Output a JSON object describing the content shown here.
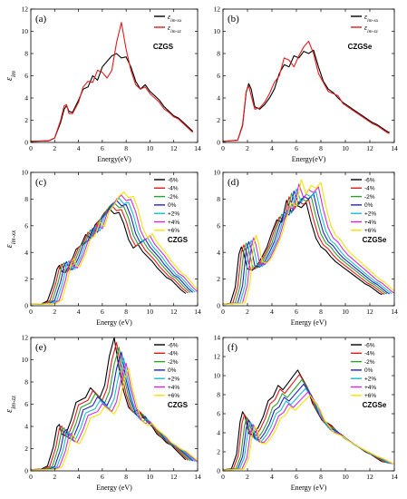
{
  "chart_data": [
    {
      "id": "a",
      "type": "line",
      "panel_label": "(a)",
      "annotation": "CZGS",
      "xlabel": "Energy(eV)",
      "ylabel_sym": "ε",
      "ylabel_sub": "im",
      "xlim": [
        0,
        14
      ],
      "ylim": [
        0,
        12
      ],
      "xticks": [
        0,
        2,
        4,
        6,
        8,
        10,
        12,
        14
      ],
      "yticks": [
        0,
        2,
        4,
        6,
        8,
        10,
        12
      ],
      "series": [
        {
          "name_sym": "ε",
          "name_sub": "im-xx",
          "color": "#000000",
          "x": [
            0,
            1.5,
            2.0,
            2.5,
            2.8,
            3.0,
            3.2,
            3.5,
            4.0,
            4.4,
            4.8,
            5.2,
            5.6,
            6.0,
            6.4,
            6.8,
            7.2,
            7.6,
            8.0,
            8.4,
            8.8,
            9.2,
            9.6,
            10.0,
            10.4,
            10.8,
            11.2,
            11.6,
            12.0,
            12.4,
            12.8,
            13.2,
            13.6
          ],
          "y": [
            0.1,
            0.15,
            0.4,
            1.8,
            3.0,
            3.3,
            2.8,
            2.7,
            3.8,
            4.8,
            5.0,
            6.0,
            5.6,
            6.8,
            7.3,
            7.8,
            8.0,
            7.6,
            7.7,
            6.8,
            5.5,
            4.8,
            5.2,
            4.6,
            4.2,
            3.8,
            3.2,
            2.8,
            2.4,
            2.2,
            1.8,
            1.4,
            1.0
          ]
        },
        {
          "name_sym": "ε",
          "name_sub": "im-zz",
          "color": "#e31a1c",
          "x": [
            0,
            1.5,
            2.0,
            2.5,
            2.8,
            3.0,
            3.2,
            3.5,
            4.0,
            4.4,
            4.8,
            5.2,
            5.6,
            6.0,
            6.4,
            6.8,
            7.2,
            7.6,
            8.0,
            8.4,
            8.8,
            9.2,
            9.6,
            10.0,
            10.4,
            10.8,
            11.2,
            11.6,
            12.0,
            12.4,
            12.8,
            13.2,
            13.6
          ],
          "y": [
            0.1,
            0.15,
            0.4,
            2.0,
            3.3,
            3.4,
            2.6,
            2.6,
            3.6,
            5.0,
            5.5,
            5.4,
            6.5,
            6.3,
            5.8,
            6.5,
            9.0,
            10.8,
            8.4,
            6.5,
            5.2,
            4.8,
            5.0,
            4.4,
            4.0,
            3.6,
            3.0,
            2.7,
            2.3,
            2.1,
            1.7,
            1.3,
            0.9
          ]
        }
      ]
    },
    {
      "id": "b",
      "type": "line",
      "panel_label": "(b)",
      "annotation": "CZGSe",
      "xlabel": "Energy(eV)",
      "xlim": [
        0,
        14
      ],
      "ylim": [
        0,
        12
      ],
      "xticks": [
        0,
        2,
        4,
        6,
        8,
        10,
        12,
        14
      ],
      "yticks": [
        0,
        2,
        4,
        6,
        8,
        10,
        12
      ],
      "series": [
        {
          "name_sym": "ε",
          "name_sub": "im-xx",
          "color": "#000000",
          "x": [
            0,
            1.2,
            1.6,
            1.9,
            2.1,
            2.3,
            2.6,
            3.0,
            3.4,
            3.8,
            4.2,
            4.6,
            5.0,
            5.4,
            5.8,
            6.2,
            6.6,
            7.0,
            7.4,
            7.8,
            8.2,
            8.6,
            9.0,
            9.4,
            9.8,
            10.2,
            10.6,
            11.0,
            11.4,
            11.8,
            12.2,
            12.6,
            13.0,
            13.4,
            13.6
          ],
          "y": [
            0.1,
            0.2,
            1.5,
            4.5,
            5.3,
            4.8,
            3.2,
            3.0,
            3.4,
            4.0,
            4.8,
            6.2,
            7.0,
            6.8,
            7.8,
            7.6,
            8.2,
            8.0,
            8.3,
            6.8,
            5.5,
            4.8,
            4.5,
            4.0,
            3.6,
            3.3,
            3.0,
            2.7,
            2.4,
            2.1,
            1.8,
            1.6,
            1.3,
            1.0,
            0.9
          ]
        },
        {
          "name_sym": "ε",
          "name_sub": "im-zz",
          "color": "#e31a1c",
          "x": [
            0,
            1.2,
            1.6,
            1.9,
            2.1,
            2.3,
            2.6,
            3.0,
            3.4,
            3.8,
            4.2,
            4.6,
            5.0,
            5.4,
            5.8,
            6.2,
            6.6,
            7.0,
            7.4,
            7.8,
            8.2,
            8.6,
            9.0,
            9.4,
            9.8,
            10.2,
            10.6,
            11.0,
            11.4,
            11.8,
            12.2,
            12.6,
            13.0,
            13.4,
            13.6
          ],
          "y": [
            0.1,
            0.2,
            1.6,
            4.6,
            5.1,
            4.2,
            3.0,
            3.1,
            3.6,
            4.4,
            5.4,
            6.0,
            7.6,
            7.4,
            6.8,
            7.8,
            8.6,
            9.1,
            8.0,
            6.2,
            5.4,
            4.6,
            4.4,
            4.2,
            3.5,
            3.2,
            2.9,
            2.6,
            2.3,
            2.0,
            1.7,
            1.5,
            1.2,
            0.9,
            0.8
          ]
        }
      ]
    },
    {
      "id": "c",
      "type": "line",
      "panel_label": "(c)",
      "annotation": "CZGS",
      "xlabel": "Energy (eV)",
      "ylabel_sym": "ε",
      "ylabel_sub": "im-xx",
      "xlim": [
        0,
        14
      ],
      "ylim": [
        0,
        10
      ],
      "xticks": [
        0,
        2,
        4,
        6,
        8,
        10,
        12,
        14
      ],
      "yticks": [
        0,
        2,
        4,
        6,
        8,
        10
      ],
      "series": [
        {
          "name": "-6%",
          "color": "#000000",
          "shift": -0.6,
          "scale": 0.92
        },
        {
          "name": "-4%",
          "color": "#e31a1c",
          "shift": -0.4,
          "scale": 0.95
        },
        {
          "name": "-2%",
          "color": "#2ca02c",
          "shift": -0.2,
          "scale": 0.98
        },
        {
          "name": "0%",
          "color": "#1f1fcc",
          "shift": 0.0,
          "scale": 1.0
        },
        {
          "name": "+2%",
          "color": "#17becf",
          "shift": 0.2,
          "scale": 1.02
        },
        {
          "name": "+4%",
          "color": "#d62ad6",
          "shift": 0.4,
          "scale": 1.05
        },
        {
          "name": "+6%",
          "color": "#f2e300",
          "shift": 0.6,
          "scale": 1.08
        }
      ],
      "base_x": [
        0,
        1.5,
        2.0,
        2.5,
        2.8,
        3.0,
        3.2,
        3.5,
        4.0,
        4.4,
        4.8,
        5.2,
        5.6,
        6.0,
        6.4,
        6.8,
        7.2,
        7.6,
        8.0,
        8.4,
        8.8,
        9.2,
        9.6,
        10.0,
        10.4,
        10.8,
        11.2,
        11.6,
        12.0,
        12.4,
        12.8,
        13.2,
        13.6
      ],
      "base_y": [
        0.1,
        0.15,
        0.4,
        1.8,
        3.0,
        3.3,
        2.8,
        2.7,
        3.6,
        4.6,
        4.9,
        5.8,
        5.5,
        6.6,
        7.0,
        7.6,
        7.9,
        7.5,
        7.6,
        6.7,
        5.4,
        4.7,
        5.0,
        4.4,
        4.0,
        3.6,
        3.1,
        2.7,
        2.3,
        2.1,
        1.7,
        1.3,
        1.0
      ]
    },
    {
      "id": "d",
      "type": "line",
      "panel_label": "(d)",
      "annotation": "CZGSe",
      "xlabel": "Energy (eV)",
      "xlim": [
        0,
        14
      ],
      "ylim": [
        0,
        10
      ],
      "xticks": [
        0,
        2,
        4,
        6,
        8,
        10,
        12,
        14
      ],
      "yticks": [
        0,
        2,
        4,
        6,
        8,
        10
      ],
      "series": [
        {
          "name": "-6%",
          "color": "#000000",
          "shift": -0.6,
          "scale": 0.92
        },
        {
          "name": "-4%",
          "color": "#e31a1c",
          "shift": -0.4,
          "scale": 0.95
        },
        {
          "name": "-2%",
          "color": "#2ca02c",
          "shift": -0.2,
          "scale": 0.98
        },
        {
          "name": "0%",
          "color": "#1f1fcc",
          "shift": 0.0,
          "scale": 1.0
        },
        {
          "name": "+2%",
          "color": "#17becf",
          "shift": 0.2,
          "scale": 1.02
        },
        {
          "name": "+4%",
          "color": "#d62ad6",
          "shift": 0.4,
          "scale": 1.06
        },
        {
          "name": "+6%",
          "color": "#f2e300",
          "shift": 0.6,
          "scale": 1.1
        }
      ],
      "base_x": [
        0,
        1.2,
        1.6,
        1.9,
        2.1,
        2.3,
        2.6,
        3.0,
        3.4,
        3.8,
        4.2,
        4.6,
        5.0,
        5.4,
        5.8,
        6.2,
        6.6,
        7.0,
        7.4,
        7.8,
        8.2,
        8.6,
        9.0,
        9.4,
        9.8,
        10.2,
        10.6,
        11.0,
        11.4,
        11.8,
        12.2,
        12.6,
        13.0,
        13.4,
        13.6
      ],
      "base_y": [
        0.1,
        0.2,
        1.5,
        4.2,
        4.8,
        4.3,
        3.0,
        2.9,
        3.3,
        4.0,
        4.8,
        6.0,
        7.0,
        6.8,
        8.6,
        7.6,
        8.2,
        8.0,
        8.4,
        6.8,
        5.5,
        4.8,
        4.5,
        4.0,
        3.6,
        3.3,
        3.0,
        2.7,
        2.4,
        2.1,
        1.8,
        1.6,
        1.3,
        1.0,
        0.9
      ]
    },
    {
      "id": "e",
      "type": "line",
      "panel_label": "(e)",
      "annotation": "CZGS",
      "xlabel": "Energy (eV)",
      "ylabel_sym": "ε",
      "ylabel_sub": "im-zz",
      "xlim": [
        0,
        14
      ],
      "ylim": [
        0,
        12
      ],
      "xticks": [
        0,
        2,
        4,
        6,
        8,
        10,
        12,
        14
      ],
      "yticks": [
        0,
        2,
        4,
        6,
        8,
        10,
        12
      ],
      "series": [
        {
          "name": "-6%",
          "color": "#000000",
          "shift": -0.6,
          "scale": 1.1
        },
        {
          "name": "-4%",
          "color": "#e31a1c",
          "shift": -0.4,
          "scale": 1.06
        },
        {
          "name": "-2%",
          "color": "#2ca02c",
          "shift": -0.2,
          "scale": 1.02
        },
        {
          "name": "0%",
          "color": "#1f1fcc",
          "shift": 0.0,
          "scale": 0.98
        },
        {
          "name": "+2%",
          "color": "#17becf",
          "shift": 0.2,
          "scale": 0.93
        },
        {
          "name": "+4%",
          "color": "#d62ad6",
          "shift": 0.4,
          "scale": 0.89
        },
        {
          "name": "+6%",
          "color": "#f2e300",
          "shift": 0.6,
          "scale": 0.85
        }
      ],
      "base_x": [
        0,
        1.5,
        2.0,
        2.5,
        2.8,
        3.0,
        3.2,
        3.5,
        4.0,
        4.4,
        4.8,
        5.2,
        5.6,
        6.0,
        6.4,
        6.8,
        7.2,
        7.6,
        8.0,
        8.4,
        8.8,
        9.2,
        9.6,
        10.0,
        10.4,
        10.8,
        11.2,
        11.6,
        12.0,
        12.4,
        12.8,
        13.2,
        13.6
      ],
      "base_y": [
        0.1,
        0.15,
        0.4,
        2.0,
        3.6,
        3.8,
        3.0,
        2.9,
        4.2,
        5.6,
        5.8,
        6.0,
        6.8,
        6.4,
        6.0,
        7.0,
        9.4,
        10.9,
        8.4,
        6.5,
        5.2,
        4.8,
        5.0,
        4.4,
        4.0,
        3.6,
        3.0,
        2.7,
        2.3,
        2.1,
        1.7,
        1.3,
        0.9
      ]
    },
    {
      "id": "f",
      "type": "line",
      "panel_label": "(f)",
      "annotation": "CZGSe",
      "xlabel": "Energy (eV)",
      "xlim": [
        0,
        14
      ],
      "ylim": [
        0,
        14
      ],
      "xticks": [
        0,
        2,
        4,
        6,
        8,
        10,
        12,
        14
      ],
      "yticks": [
        0,
        2,
        4,
        6,
        8,
        10,
        12,
        14
      ],
      "series": [
        {
          "name": "-6%",
          "color": "#000000",
          "shift": -0.5,
          "scale": 1.15
        },
        {
          "name": "-4%",
          "color": "#e31a1c",
          "shift": -0.35,
          "scale": 1.1
        },
        {
          "name": "-2%",
          "color": "#2ca02c",
          "shift": -0.15,
          "scale": 1.04
        },
        {
          "name": "0%",
          "color": "#1f1fcc",
          "shift": 0.0,
          "scale": 0.99
        },
        {
          "name": "+2%",
          "color": "#17becf",
          "shift": 0.15,
          "scale": 0.94
        },
        {
          "name": "+4%",
          "color": "#d62ad6",
          "shift": 0.35,
          "scale": 0.9
        },
        {
          "name": "+6%",
          "color": "#f2e300",
          "shift": 0.5,
          "scale": 0.86
        }
      ],
      "base_x": [
        0,
        1.2,
        1.6,
        1.9,
        2.1,
        2.3,
        2.6,
        3.0,
        3.4,
        3.8,
        4.2,
        4.6,
        5.0,
        5.4,
        5.8,
        6.2,
        6.6,
        7.0,
        7.4,
        7.8,
        8.2,
        8.6,
        9.0,
        9.4,
        9.8,
        10.2,
        10.6,
        11.0,
        11.4,
        11.8,
        12.2,
        12.6,
        13.0,
        13.4,
        13.6
      ],
      "base_y": [
        0.1,
        0.2,
        1.5,
        4.5,
        5.4,
        5.0,
        3.4,
        3.3,
        4.0,
        5.0,
        6.4,
        6.8,
        7.8,
        7.4,
        8.0,
        8.6,
        9.2,
        8.4,
        7.6,
        6.2,
        5.4,
        4.6,
        4.4,
        4.1,
        3.6,
        3.3,
        2.9,
        2.6,
        2.3,
        2.0,
        1.7,
        1.5,
        1.2,
        0.9,
        0.8
      ]
    }
  ]
}
